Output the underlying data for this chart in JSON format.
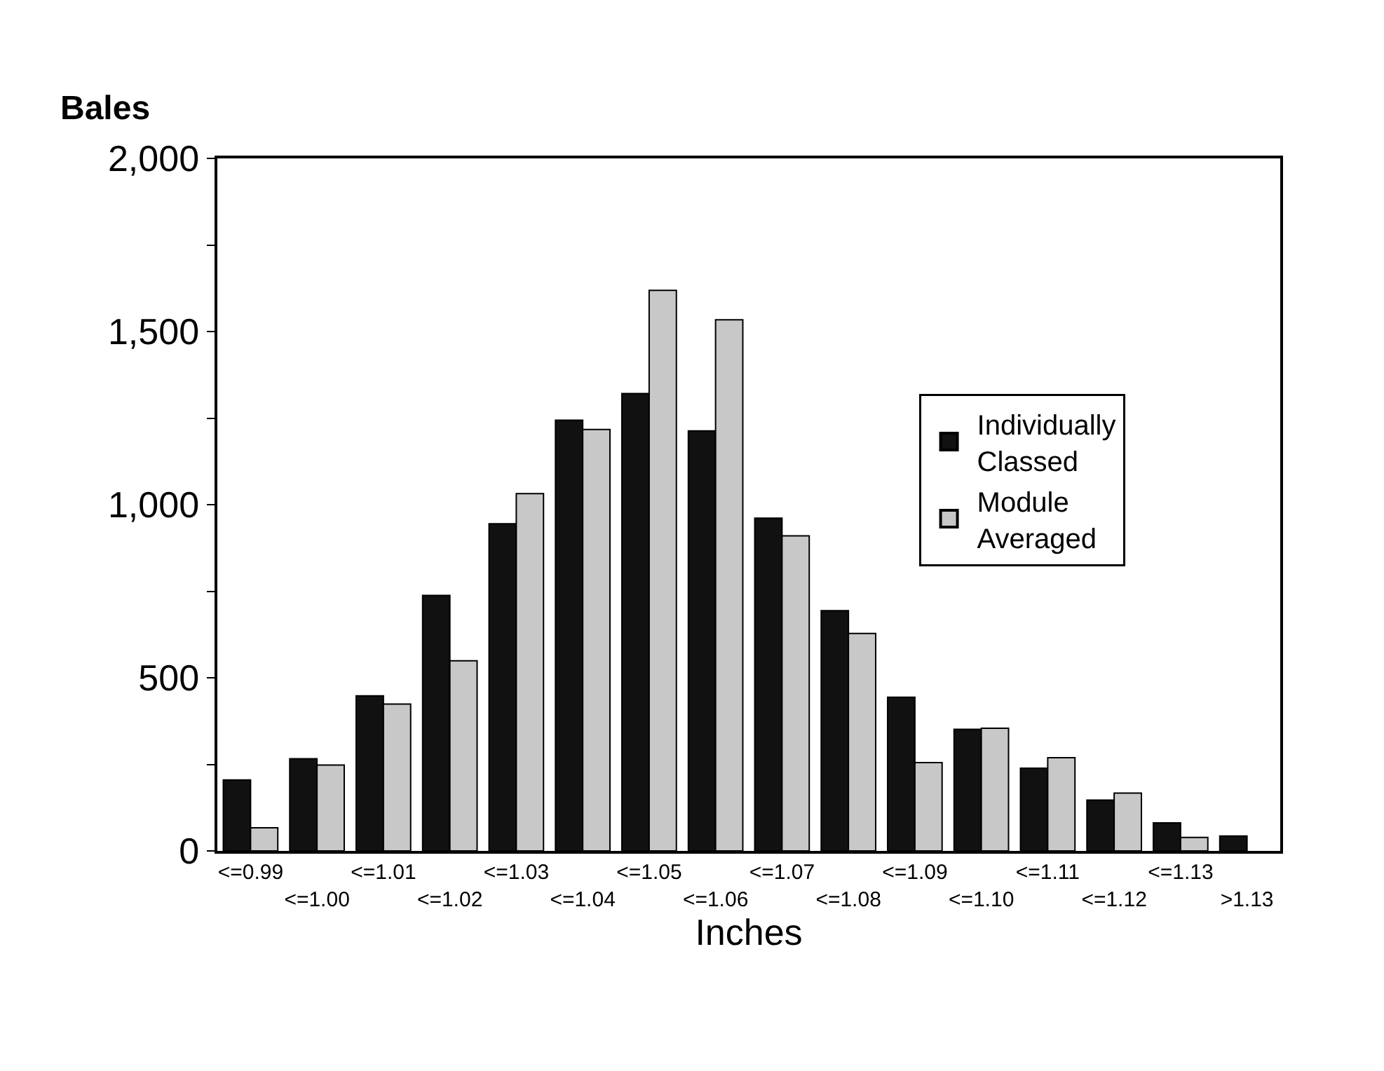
{
  "chart_data": {
    "type": "bar",
    "ylabel": "Bales",
    "xlabel": "Inches",
    "categories": [
      "<=0.99",
      "<=1.00",
      "<=1.01",
      "<=1.02",
      "<=1.03",
      "<=1.04",
      "<=1.05",
      "<=1.06",
      "<=1.07",
      "<=1.08",
      "<=1.09",
      "<=1.10",
      "<=1.11",
      "<=1.12",
      "<=1.13",
      ">1.13"
    ],
    "series": [
      {
        "name": "Individually Classed",
        "color": "#111111",
        "values": [
          205,
          266,
          448,
          738,
          945,
          1244,
          1321,
          1213,
          961,
          694,
          444,
          351,
          239,
          147,
          81,
          43
        ]
      },
      {
        "name": "Module Averaged",
        "color": "#c8c8c8",
        "values": [
          67,
          248,
          424,
          549,
          1032,
          1217,
          1619,
          1534,
          910,
          628,
          255,
          354,
          269,
          167,
          39,
          null
        ]
      }
    ],
    "ylim": [
      0,
      2000
    ],
    "yticks": [
      0,
      {
        "value": 250,
        "label": null
      },
      {
        "value": 500,
        "label": "500"
      },
      {
        "value": 750,
        "label": null
      },
      {
        "value": 1000,
        "label": "1,000"
      },
      {
        "value": 1250,
        "label": null
      },
      {
        "value": 1500,
        "label": "1,500"
      },
      {
        "value": 1750,
        "label": null
      },
      {
        "value": 2000,
        "label": "2,000"
      }
    ],
    "legend": "right"
  }
}
